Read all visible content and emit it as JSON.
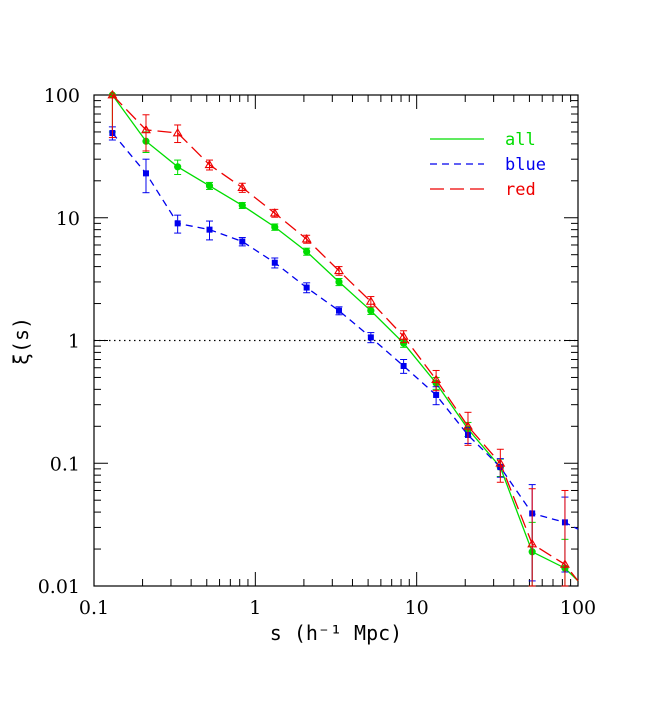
{
  "chart_data": {
    "type": "line",
    "xlabel": "s (h⁻¹ Mpc)",
    "ylabel": "ξ(s)",
    "xscale": "log",
    "yscale": "log",
    "xlim": [
      0.1,
      100
    ],
    "ylim": [
      0.01,
      100
    ],
    "x_tick_labels": [
      "0.1",
      "1",
      "10",
      "100"
    ],
    "y_tick_labels": [
      "0.01",
      "0.1",
      "1",
      "10",
      "100"
    ],
    "reference_line": {
      "y": 1,
      "style": "dotted"
    },
    "legend": {
      "placement": "top-right"
    },
    "series": [
      {
        "name": "all",
        "color": "#00dd00",
        "line": "solid",
        "marker": "filled-circle",
        "x": [
          0.13,
          0.21,
          0.33,
          0.52,
          0.83,
          1.32,
          2.08,
          3.3,
          5.2,
          8.3,
          13.2,
          20.8,
          33,
          52,
          83,
          100
        ],
        "y": [
          100,
          42,
          26,
          18.2,
          12.6,
          8.4,
          5.3,
          3.0,
          1.75,
          0.95,
          0.45,
          0.19,
          0.093,
          0.019,
          0.014,
          0.011
        ],
        "err": [
          50,
          8,
          3.5,
          1.2,
          0.7,
          0.5,
          0.35,
          0.2,
          0.12,
          0.07,
          0.05,
          0.025,
          0.015,
          0.014,
          0.01,
          0
        ]
      },
      {
        "name": "blue",
        "color": "#0000ee",
        "line": "short-dash",
        "marker": "filled-square",
        "x": [
          0.13,
          0.21,
          0.33,
          0.52,
          0.83,
          1.32,
          2.08,
          3.3,
          5.2,
          8.3,
          13.2,
          20.8,
          33,
          52,
          83,
          100
        ],
        "y": [
          49,
          23,
          9.0,
          8.0,
          6.4,
          4.3,
          2.7,
          1.75,
          1.06,
          0.62,
          0.36,
          0.17,
          0.093,
          0.039,
          0.033,
          0.029
        ],
        "err": [
          6,
          7,
          1.5,
          1.4,
          0.5,
          0.4,
          0.25,
          0.13,
          0.1,
          0.08,
          0.06,
          0.025,
          0.016,
          0.028,
          0.02,
          0
        ]
      },
      {
        "name": "red",
        "color": "#ee0000",
        "line": "long-dash",
        "marker": "open-triangle",
        "x": [
          0.13,
          0.21,
          0.33,
          0.52,
          0.83,
          1.32,
          2.08,
          3.3,
          5.2,
          8.3,
          13.2,
          20.8,
          33,
          52,
          83,
          100
        ],
        "y": [
          100,
          52,
          49,
          27,
          17.6,
          10.9,
          6.7,
          3.7,
          2.08,
          1.08,
          0.48,
          0.2,
          0.1,
          0.022,
          0.015,
          0.011
        ],
        "err": [
          55,
          17,
          8,
          2.5,
          1.5,
          0.8,
          0.5,
          0.3,
          0.2,
          0.12,
          0.09,
          0.06,
          0.03,
          0.04,
          0.045,
          0
        ]
      }
    ]
  }
}
